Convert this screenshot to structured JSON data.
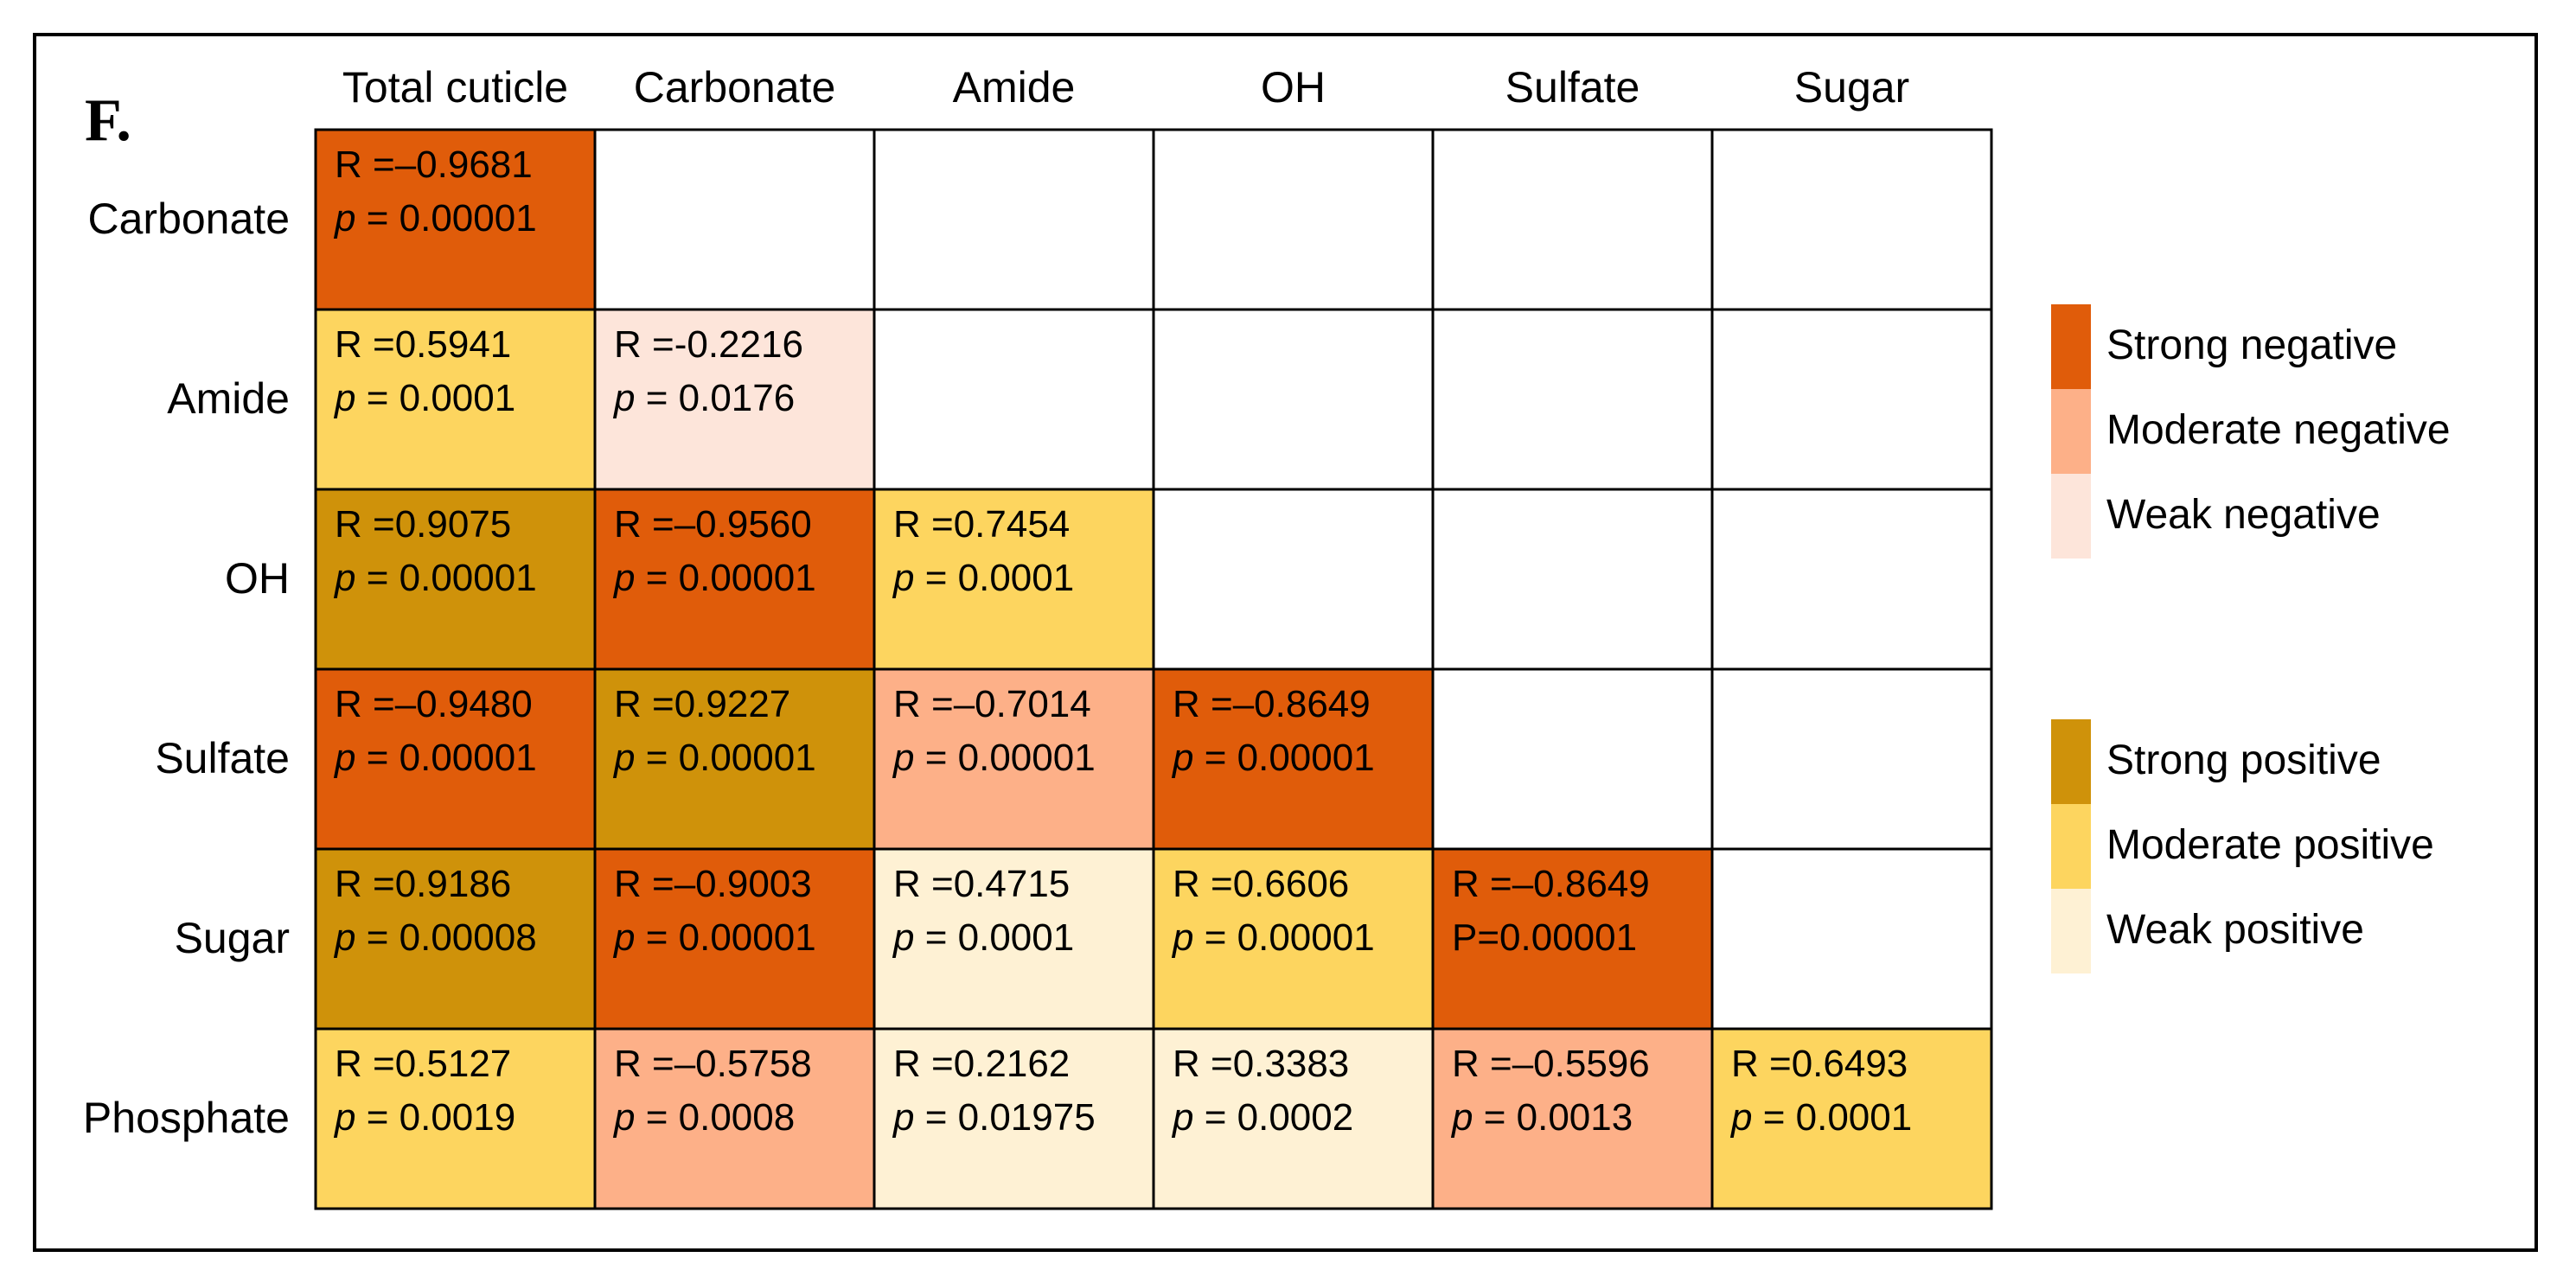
{
  "panel_label": "F.",
  "colors": {
    "strong_negative": "#E05C0A",
    "moderate_negative": "#FDB088",
    "weak_negative": "#FDE5DA",
    "strong_positive": "#CF920A",
    "moderate_positive": "#FDD55F",
    "weak_positive": "#FEF1D4",
    "empty": "#FFFFFF",
    "grid_line": "#000000"
  },
  "chart_data": {
    "type": "heatmap",
    "title": "",
    "columns": [
      "Total cuticle",
      "Carbonate",
      "Amide",
      "OH",
      "Sulfate",
      "Sugar"
    ],
    "rows": [
      "Carbonate",
      "Amide",
      "OH",
      "Sulfate",
      "Sugar",
      "Phosphate"
    ],
    "cells": [
      [
        {
          "r_text": "R =–0.9681",
          "p_text": "= 0.00001",
          "p_prefix": "p",
          "R": -0.9681,
          "p": 1e-05,
          "category": "strong_negative"
        },
        null,
        null,
        null,
        null,
        null
      ],
      [
        {
          "r_text": "R =0.5941",
          "p_text": "= 0.0001",
          "p_prefix": "p",
          "R": 0.5941,
          "p": 0.0001,
          "category": "moderate_positive"
        },
        {
          "r_text": "R =-0.2216",
          "p_text": "= 0.0176",
          "p_prefix": "p",
          "R": -0.2216,
          "p": 0.0176,
          "category": "weak_negative"
        },
        null,
        null,
        null,
        null
      ],
      [
        {
          "r_text": "R =0.9075",
          "p_text": "= 0.00001",
          "p_prefix": "p",
          "R": 0.9075,
          "p": 1e-05,
          "category": "strong_positive"
        },
        {
          "r_text": "R =–0.9560",
          "p_text": "= 0.00001",
          "p_prefix": "p",
          "R": -0.956,
          "p": 1e-05,
          "category": "strong_negative"
        },
        {
          "r_text": "R =0.7454",
          "p_text": "= 0.0001",
          "p_prefix": "p",
          "R": 0.7454,
          "p": 0.0001,
          "category": "moderate_positive"
        },
        null,
        null,
        null
      ],
      [
        {
          "r_text": "R =–0.9480",
          "p_text": "= 0.00001",
          "p_prefix": "p",
          "R": -0.948,
          "p": 1e-05,
          "category": "strong_negative"
        },
        {
          "r_text": "R =0.9227",
          "p_text": "= 0.00001",
          "p_prefix": "p",
          "R": 0.9227,
          "p": 1e-05,
          "category": "strong_positive"
        },
        {
          "r_text": "R =–0.7014",
          "p_text": "= 0.00001",
          "p_prefix": "p",
          "R": -0.7014,
          "p": 1e-05,
          "category": "moderate_negative"
        },
        {
          "r_text": "R =–0.8649",
          "p_text": "= 0.00001",
          "p_prefix": "p",
          "R": -0.8649,
          "p": 1e-05,
          "category": "strong_negative"
        },
        null,
        null
      ],
      [
        {
          "r_text": "R =0.9186",
          "p_text": "= 0.00008",
          "p_prefix": "p",
          "R": 0.9186,
          "p": 8e-05,
          "category": "strong_positive"
        },
        {
          "r_text": "R =–0.9003",
          "p_text": "= 0.00001",
          "p_prefix": "p",
          "R": -0.9003,
          "p": 1e-05,
          "category": "strong_negative"
        },
        {
          "r_text": "R =0.4715",
          "p_text": "= 0.0001",
          "p_prefix": "p",
          "R": 0.4715,
          "p": 0.0001,
          "category": "weak_positive"
        },
        {
          "r_text": "R =0.6606",
          "p_text": "= 0.00001",
          "p_prefix": "p",
          "R": 0.6606,
          "p": 1e-05,
          "category": "moderate_positive"
        },
        {
          "r_text": "R =–0.8649",
          "p_text": "P=0.00001",
          "p_prefix": "",
          "R": -0.8649,
          "p": 1e-05,
          "category": "strong_negative"
        },
        null
      ],
      [
        {
          "r_text": "R =0.5127",
          "p_text": "= 0.0019",
          "p_prefix": "p",
          "R": 0.5127,
          "p": 0.0019,
          "category": "moderate_positive"
        },
        {
          "r_text": "R =–0.5758",
          "p_text": "= 0.0008",
          "p_prefix": "p",
          "R": -0.5758,
          "p": 0.0008,
          "category": "moderate_negative"
        },
        {
          "r_text": "R =0.2162",
          "p_text": "= 0.01975",
          "p_prefix": "p",
          "R": 0.2162,
          "p": 0.01975,
          "category": "weak_positive"
        },
        {
          "r_text": "R =0.3383",
          "p_text": "= 0.0002",
          "p_prefix": "p",
          "R": 0.3383,
          "p": 0.0002,
          "category": "weak_positive"
        },
        {
          "r_text": "R =–0.5596",
          "p_text": "= 0.0013",
          "p_prefix": "p",
          "R": -0.5596,
          "p": 0.0013,
          "category": "moderate_negative"
        },
        {
          "r_text": "R =0.6493",
          "p_text": "= 0.0001",
          "p_prefix": "p",
          "R": 0.6493,
          "p": 0.0001,
          "category": "moderate_positive"
        }
      ]
    ],
    "legend": {
      "negative": [
        {
          "label": "Strong negative",
          "category": "strong_negative"
        },
        {
          "label": "Moderate negative",
          "category": "moderate_negative"
        },
        {
          "label": "Weak negative",
          "category": "weak_negative"
        }
      ],
      "positive": [
        {
          "label": "Strong positive",
          "category": "strong_positive"
        },
        {
          "label": "Moderate positive",
          "category": "moderate_positive"
        },
        {
          "label": "Weak positive",
          "category": "weak_positive"
        }
      ],
      "placement": "right"
    }
  }
}
